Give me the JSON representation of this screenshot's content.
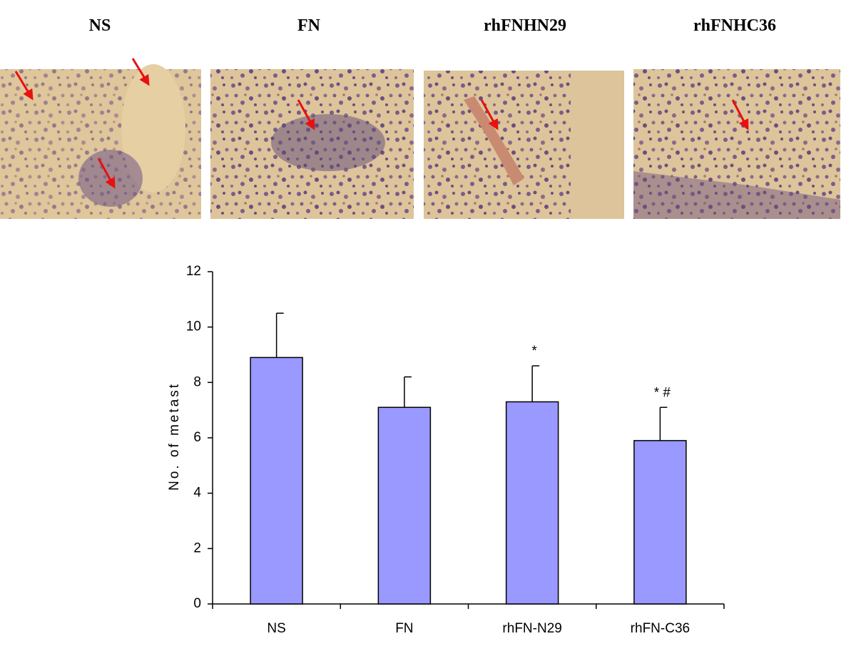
{
  "panels": [
    "NS",
    "FN",
    "rhFNHN29",
    "rhFNHC36"
  ],
  "chart_data": {
    "type": "bar",
    "y_label": "No. of metast",
    "categories": [
      "NS",
      "FN",
      "rhFN-N29",
      "rhFN-C36"
    ],
    "values": [
      8.9,
      7.1,
      7.3,
      5.9
    ],
    "errors": [
      1.6,
      1.1,
      1.3,
      1.2
    ],
    "annotations": [
      null,
      null,
      "*",
      "* #"
    ],
    "color": "#9999ff",
    "ylim": [
      0,
      12
    ],
    "yticks": [
      0,
      2,
      4,
      6,
      8,
      10,
      12
    ],
    "grid": false
  }
}
